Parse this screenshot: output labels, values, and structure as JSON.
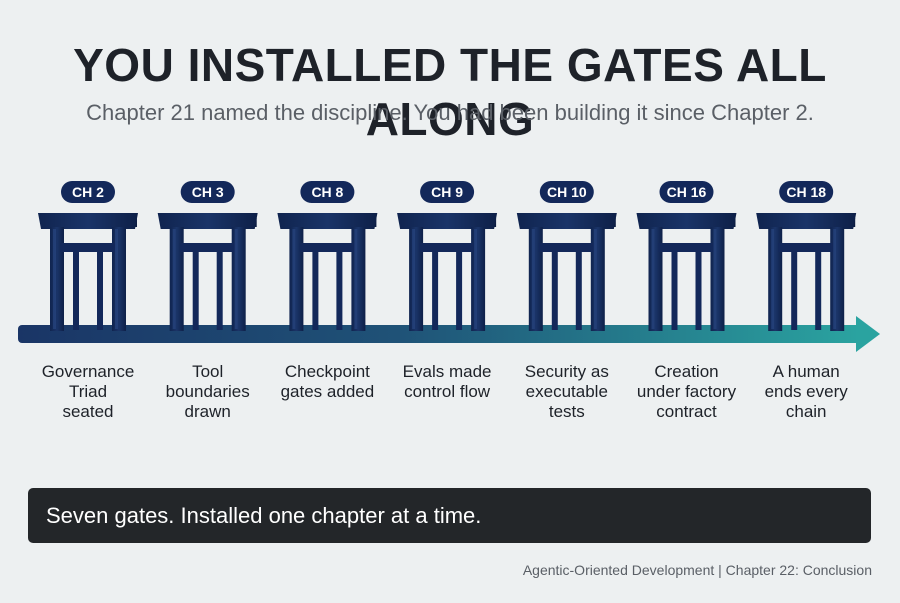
{
  "title": "YOU INSTALLED THE GATES ALL ALONG",
  "subtitle": "Chapter 21 named the discipline. You had been building it since Chapter 2.",
  "colors": {
    "gate": "#13285a",
    "badge": "#13285a",
    "arrow_start": "#1a3566",
    "arrow_end": "#2aa3a0",
    "callout_bg": "#232629"
  },
  "gates": [
    {
      "badge": "CH 2",
      "label_lines": [
        "Governance",
        "Triad",
        "seated"
      ]
    },
    {
      "badge": "CH 3",
      "label_lines": [
        "Tool",
        "boundaries",
        "drawn"
      ]
    },
    {
      "badge": "CH 8",
      "label_lines": [
        "Checkpoint",
        "gates added"
      ]
    },
    {
      "badge": "CH 9",
      "label_lines": [
        "Evals made",
        "control flow"
      ]
    },
    {
      "badge": "CH 10",
      "label_lines": [
        "Security as",
        "executable",
        "tests"
      ]
    },
    {
      "badge": "CH 16",
      "label_lines": [
        "Creation",
        "under factory",
        "contract"
      ]
    },
    {
      "badge": "CH 18",
      "label_lines": [
        "A human",
        "ends every",
        "chain"
      ]
    }
  ],
  "callout": "Seven gates. Installed one chapter at a time.",
  "footer": "Agentic-Oriented Development | Chapter 22: Conclusion"
}
